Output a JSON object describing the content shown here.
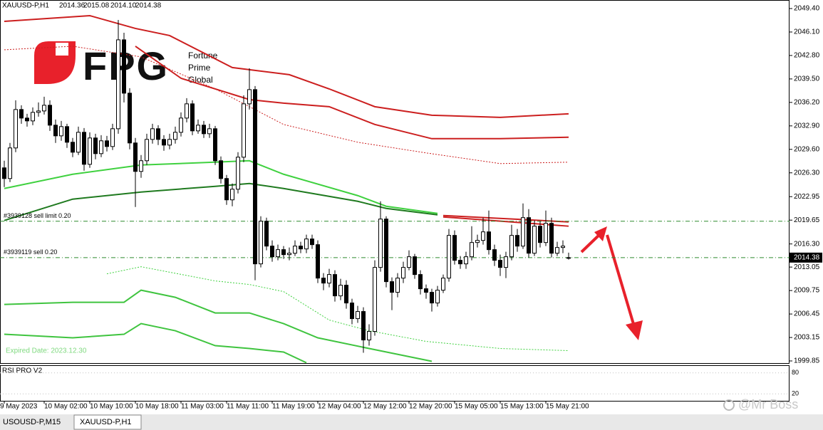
{
  "header": {
    "symbol": "XAUUSD-P,H1",
    "ohlc": [
      "2014.36",
      "2015.08",
      "2014.10",
      "2014.38"
    ]
  },
  "logo": {
    "mark": "FPG",
    "lines": [
      "Fortune",
      "Prime",
      "Global"
    ]
  },
  "expired": "Expired Date: 2023.12.30",
  "watermark": "@Mr Boss",
  "tabs": [
    "USOUSD-P,M15",
    "XAUUSD-P,H1"
  ],
  "chart_data": {
    "type": "candlestick",
    "categories": [
      "9 May 2023",
      null,
      null,
      null,
      null,
      null,
      null,
      "10 May 02:00",
      null,
      null,
      null,
      null,
      null,
      null,
      null,
      "10 May 10:00",
      null,
      null,
      null,
      null,
      null,
      null,
      null,
      "10 May 18:00",
      null,
      null,
      null,
      null,
      null,
      null,
      null,
      "11 May 03:00",
      null,
      null,
      null,
      null,
      null,
      null,
      null,
      "11 May 11:00",
      null,
      null,
      null,
      null,
      null,
      null,
      null,
      "11 May 19:00",
      null,
      null,
      null,
      null,
      null,
      null,
      null,
      "12 May 04:00",
      null,
      null,
      null,
      null,
      null,
      null,
      null,
      "12 May 12:00",
      null,
      null,
      null,
      null,
      null,
      null,
      null,
      "12 May 20:00",
      null,
      null,
      null,
      null,
      null,
      null,
      null,
      "15 May 05:00",
      null,
      null,
      null,
      null,
      null,
      null,
      null,
      "15 May 13:00",
      null,
      null,
      null,
      null,
      null,
      null,
      null,
      "15 May 21:00",
      null,
      null,
      null,
      null
    ],
    "open": [
      2027.0,
      2025.5,
      2029.8,
      2035.2,
      2034.0,
      2033.6,
      2034.8,
      2035.0,
      2035.8,
      2033.0,
      2031.5,
      2032.8,
      2030.6,
      2029.2,
      2032.0,
      2027.5,
      2031.2,
      2029.0,
      2030.8,
      2030.0,
      2032.5,
      2045.0,
      2037.5,
      2030.5,
      2026.5,
      2028.0,
      2031.0,
      2032.5,
      2031.0,
      2030.2,
      2031.0,
      2032.0,
      2034.0,
      2036.0,
      2032.2,
      2033.0,
      2031.8,
      2032.5,
      2028.0,
      2025.5,
      2022.5,
      2024.0,
      2028.5,
      2036.0,
      2038.0,
      2013.5,
      2019.5,
      2016.0,
      2014.5,
      2015.5,
      2014.8,
      2015.0,
      2016.0,
      2015.6,
      2017.0,
      2016.2,
      2011.5,
      2010.8,
      2012.0,
      2009.0,
      2010.5,
      2008.0,
      2005.8,
      2006.8,
      2002.8,
      2004.0,
      2013.0,
      2019.8,
      2011.0,
      2009.5,
      2011.5,
      2013.0,
      2014.5,
      2012.0,
      2010.0,
      2009.5,
      2008.0,
      2009.8,
      2011.5,
      2017.5,
      2014.0,
      2013.5,
      2014.5,
      2016.5,
      2016.8,
      2018.0,
      2015.5,
      2014.0,
      2013.0,
      2014.5,
      2017.5,
      2016.0,
      2020.0,
      2015.0,
      2018.8,
      2016.5,
      2019.2,
      2015.0,
      2015.8,
      2014.36
    ],
    "high": [
      2028.0,
      2030.5,
      2036.5,
      2035.8,
      2034.6,
      2035.5,
      2036.2,
      2037.0,
      2036.5,
      2033.8,
      2033.6,
      2033.2,
      2031.2,
      2032.8,
      2032.6,
      2032.0,
      2031.8,
      2031.6,
      2031.5,
      2033.2,
      2047.8,
      2046.0,
      2038.2,
      2031.2,
      2028.8,
      2031.8,
      2033.2,
      2033.0,
      2031.6,
      2031.8,
      2032.8,
      2034.8,
      2036.8,
      2036.5,
      2033.8,
      2033.6,
      2033.2,
      2032.9,
      2028.6,
      2026.0,
      2024.8,
      2029.2,
      2037.2,
      2041.0,
      2038.5,
      2020.2,
      2020.0,
      2016.8,
      2016.2,
      2016.0,
      2015.8,
      2016.8,
      2016.6,
      2017.6,
      2017.6,
      2016.8,
      2012.2,
      2012.8,
      2012.6,
      2011.4,
      2011.2,
      2008.6,
      2007.6,
      2007.4,
      2005.0,
      2014.0,
      2022.3,
      2020.2,
      2011.6,
      2012.2,
      2013.8,
      2015.4,
      2014.9,
      2012.6,
      2010.6,
      2010.0,
      2010.4,
      2012.0,
      2018.4,
      2018.2,
      2014.6,
      2015.2,
      2018.8,
      2017.6,
      2020.0,
      2021.0,
      2016.2,
      2014.8,
      2015.2,
      2019.0,
      2018.4,
      2022.0,
      2021.2,
      2019.6,
      2019.5,
      2021.0,
      2020.0,
      2016.6,
      2016.8,
      2015.08
    ],
    "low": [
      2024.3,
      2025.0,
      2029.2,
      2033.2,
      2032.8,
      2033.0,
      2034.2,
      2034.5,
      2032.2,
      2030.5,
      2030.8,
      2029.8,
      2028.5,
      2028.8,
      2026.6,
      2027.0,
      2028.2,
      2028.5,
      2029.3,
      2029.5,
      2031.8,
      2036.2,
      2029.6,
      2021.5,
      2025.6,
      2027.4,
      2030.4,
      2030.2,
      2029.4,
      2029.6,
      2030.4,
      2031.4,
      2033.4,
      2031.6,
      2031.8,
      2031.2,
      2031.2,
      2027.4,
      2024.8,
      2021.8,
      2021.6,
      2023.4,
      2027.8,
      2035.2,
      2011.2,
      2013.0,
      2015.4,
      2013.8,
      2014.0,
      2014.2,
      2014.0,
      2014.6,
      2015.0,
      2015.0,
      2015.6,
      2010.8,
      2009.8,
      2010.2,
      2008.2,
      2008.4,
      2007.2,
      2005.0,
      2005.2,
      2001.0,
      2002.0,
      2003.4,
      2012.4,
      2010.2,
      2007.0,
      2008.8,
      2010.8,
      2012.6,
      2011.4,
      2009.2,
      2008.6,
      2006.8,
      2007.5,
      2009.4,
      2011.0,
      2013.4,
      2012.8,
      2012.8,
      2014.0,
      2015.8,
      2016.2,
      2014.8,
      2013.2,
      2011.8,
      2011.5,
      2014.0,
      2015.2,
      2015.6,
      2014.4,
      2014.6,
      2015.8,
      2016.0,
      2014.4,
      2014.6,
      2015.0,
      2014.1
    ],
    "close": [
      2025.5,
      2029.8,
      2035.2,
      2034.0,
      2033.6,
      2034.8,
      2035.0,
      2035.8,
      2033.0,
      2031.5,
      2032.8,
      2030.6,
      2029.2,
      2032.0,
      2027.5,
      2031.2,
      2029.0,
      2030.8,
      2030.0,
      2032.5,
      2045.0,
      2037.5,
      2030.5,
      2026.5,
      2028.0,
      2031.0,
      2032.5,
      2031.0,
      2030.2,
      2031.0,
      2032.0,
      2034.0,
      2036.0,
      2032.2,
      2033.0,
      2031.8,
      2032.5,
      2028.0,
      2025.5,
      2022.5,
      2024.0,
      2028.5,
      2036.0,
      2038.0,
      2013.5,
      2019.5,
      2016.0,
      2014.5,
      2015.5,
      2014.8,
      2015.0,
      2016.0,
      2015.6,
      2017.0,
      2016.2,
      2011.5,
      2010.8,
      2012.0,
      2009.0,
      2010.5,
      2008.0,
      2005.8,
      2006.8,
      2002.8,
      2004.0,
      2013.0,
      2019.8,
      2011.0,
      2009.5,
      2011.5,
      2013.0,
      2014.5,
      2012.0,
      2010.0,
      2009.5,
      2008.0,
      2009.8,
      2011.5,
      2017.5,
      2014.0,
      2013.5,
      2014.5,
      2016.5,
      2016.8,
      2018.0,
      2015.5,
      2014.0,
      2013.0,
      2014.5,
      2017.5,
      2016.0,
      2020.0,
      2015.0,
      2018.8,
      2016.5,
      2019.2,
      2015.0,
      2015.8,
      2016.0,
      2014.38
    ],
    "bull_color": "#ffffff",
    "bear_color": "#000000",
    "ylim": [
      1999.55,
      2050.6
    ],
    "yticks": [
      {
        "value": 2049.4,
        "label": "2049.40"
      },
      {
        "value": 2046.1,
        "label": "2046.10"
      },
      {
        "value": 2042.8,
        "label": "2042.80"
      },
      {
        "value": 2039.5,
        "label": "2039.50"
      },
      {
        "value": 2036.2,
        "label": "2036.20"
      },
      {
        "value": 2032.9,
        "label": "2032.90"
      },
      {
        "value": 2029.6,
        "label": "2029.60"
      },
      {
        "value": 2026.3,
        "label": "2026.30"
      },
      2022.95,
      2019.65,
      {
        "value": 2016.3,
        "label": "2016.30"
      },
      2013.05,
      2009.75,
      2006.45,
      2003.15,
      1999.85
    ],
    "indicators": [
      {
        "color": "#cc1f1f",
        "dashed": false,
        "x": [
          0,
          15,
          23,
          29,
          40,
          50,
          57,
          65,
          75,
          87,
          99
        ],
        "values": [
          2047.6,
          2048.4,
          2046.6,
          2045.6,
          2041.1,
          2040.1,
          2038.1,
          2035.6,
          2034.4,
          2034.1,
          2034.6
        ]
      },
      {
        "color": "#cc1f1f",
        "dashed": false,
        "x": [
          23,
          31,
          43,
          49,
          57,
          65,
          75,
          87,
          99
        ],
        "values": [
          2044.1,
          2039.6,
          2036.6,
          2036.1,
          2035.6,
          2033.1,
          2031.1,
          2031.1,
          2031.3
        ]
      },
      {
        "color": "#cc1f1f",
        "dashed": true,
        "x": [
          0,
          12,
          24,
          37,
          49,
          62,
          74,
          87,
          99
        ],
        "values": [
          2043.6,
          2044.1,
          2042.6,
          2038.1,
          2033.1,
          2030.6,
          2029.1,
          2027.6,
          2027.8
        ]
      },
      {
        "color": "#3fd13f",
        "dashed": false,
        "x": [
          0,
          12,
          24,
          37,
          43,
          49,
          62,
          67,
          76
        ],
        "values": [
          2024.1,
          2026.1,
          2027.4,
          2027.8,
          2028.0,
          2026.1,
          2023.1,
          2021.6,
          2020.6
        ]
      },
      {
        "color": "#1f7a1f",
        "dashed": false,
        "x": [
          0,
          12,
          24,
          37,
          43,
          49,
          62,
          67,
          76
        ],
        "values": [
          2019.6,
          2022.6,
          2023.6,
          2024.4,
          2024.8,
          2024.1,
          2022.3,
          2021.3,
          2020.4
        ]
      },
      {
        "color": "#cc1f1f",
        "dashed": false,
        "x": [
          77,
          99
        ],
        "values": [
          2020.3,
          2019.4
        ]
      },
      {
        "color": "#cc1f1f",
        "dashed": false,
        "x": [
          77,
          99
        ],
        "values": [
          2020.1,
          2018.8
        ]
      },
      {
        "color": "#3fd13f",
        "dashed": true,
        "x": [
          18,
          24,
          37,
          43,
          49,
          57,
          64,
          74,
          87,
          99
        ],
        "values": [
          2012.1,
          2013.1,
          2011.1,
          2010.6,
          2009.6,
          2005.6,
          2004.1,
          2002.6,
          2001.6,
          2001.3
        ]
      },
      {
        "color": "#3fc43f",
        "dashed": false,
        "x": [
          0,
          12,
          21,
          24,
          30,
          37,
          43,
          49,
          55,
          64,
          75
        ],
        "values": [
          2007.8,
          2008.1,
          2008.1,
          2009.8,
          2008.8,
          2006.6,
          2006.6,
          2005.1,
          2003.1,
          2001.6,
          1999.8
        ]
      },
      {
        "color": "#3fc43f",
        "dashed": false,
        "x": [
          0,
          12,
          21,
          24,
          30,
          37,
          43,
          49,
          53
        ],
        "values": [
          2003.6,
          2003.1,
          2003.6,
          2005.1,
          2004.1,
          2002.0,
          2001.6,
          2001.1,
          1999.6
        ]
      }
    ],
    "orders": [
      {
        "label": "#3939128 sell limit 0.20",
        "price": 2019.5
      },
      {
        "label": "#3939119 sell 0.20",
        "price": 2014.38
      }
    ],
    "rsi": {
      "title": "RSI PRO V2",
      "ylim": [
        0,
        100
      ],
      "yticks": [
        80,
        20
      ]
    }
  }
}
